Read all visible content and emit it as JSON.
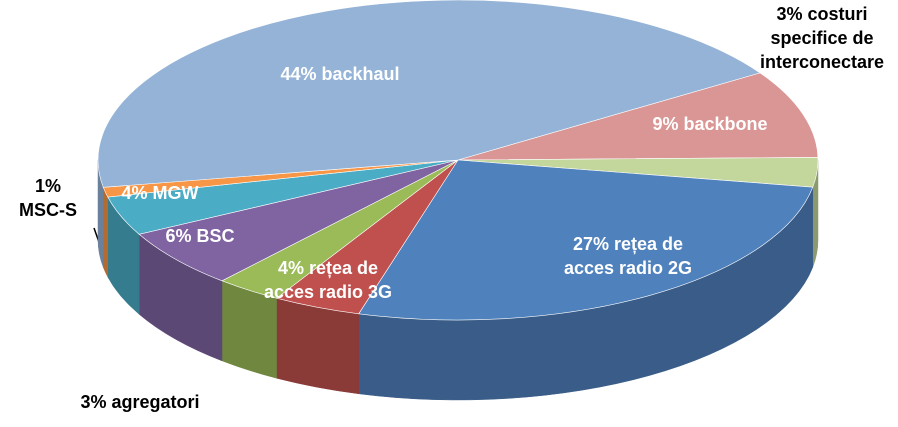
{
  "chart_data": {
    "type": "pie",
    "values": [
      9,
      3,
      27,
      4,
      3,
      6,
      4,
      1,
      44
    ],
    "value_labels": [
      "9% backbone",
      "3% costuri\nspecifice de\ninterconectare",
      "27% rețea de\nacces radio 2G",
      "4% rețea de\nacces radio 3G",
      "3% agregatori",
      "6% BSC",
      "4% MGW",
      "1%\nMSC-S",
      "44% backhaul"
    ],
    "colors": [
      "#d99694",
      "#c3d69b",
      "#4f81bd",
      "#c0504d",
      "#9bbb59",
      "#8064a2",
      "#4bacc6",
      "#f79646",
      "#95b3d7"
    ]
  }
}
